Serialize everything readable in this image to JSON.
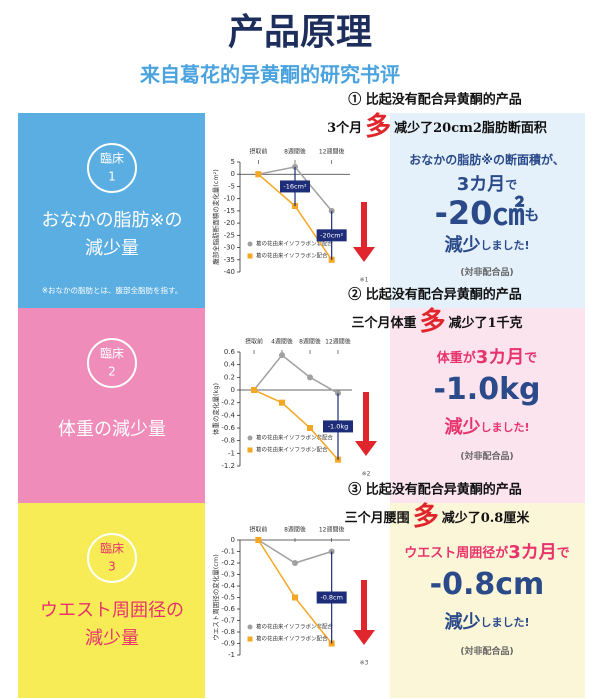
{
  "header": {
    "title": "产品原理",
    "subtitle": "来自葛花的异黄酮的研究书评"
  },
  "sections": [
    {
      "heading": "① 比起没有配合异黄酮的产品",
      "claim": [
        "3个月",
        "多",
        "减少了20cm2脂肪断面积"
      ],
      "badge": [
        "臨床",
        "1"
      ],
      "label": [
        "おなかの脂肪※の",
        "減少量"
      ],
      "note": "※おなかの脂肪とは、腹部全脂肪を指す。",
      "result": [
        [
          "おなかの脂肪※の断面積が、"
        ],
        [
          "3カ月",
          "で"
        ],
        [
          "-20㎠",
          "も"
        ],
        [
          "減少",
          "しました!"
        ],
        [
          "(対非配合品)"
        ]
      ]
    },
    {
      "heading": "② 比起没有配合异黄酮的产品",
      "claim": [
        "三个月体重",
        "多",
        "减少了1千克"
      ],
      "badge": [
        "臨床",
        "2"
      ],
      "label": [
        "体重の減少量"
      ],
      "result": [
        [
          "体重が",
          "3カ月",
          "で"
        ],
        [
          "-1.0kg"
        ],
        [
          "減少",
          "しました!"
        ],
        [
          "(対非配合品)"
        ]
      ]
    },
    {
      "heading": "③ 比起没有配合异黄酮的产品",
      "claim": [
        "三个月腰围",
        "多",
        "减少了0.8厘米"
      ],
      "badge": [
        "臨床",
        "3"
      ],
      "label": [
        "ウエスト周囲径の",
        "減少量"
      ],
      "result": [
        [
          "ウエスト周囲径が",
          "3カ月",
          "で"
        ],
        [
          "-0.8cm"
        ],
        [
          "減少",
          "しました!"
        ],
        [
          "(対非配合品)"
        ]
      ]
    }
  ],
  "chart_data": [
    {
      "type": "line",
      "categories": [
        "摂取前",
        "8週間後",
        "12週間後"
      ],
      "ylabel": "腹部全脂肪断面積の変化量(cm²)",
      "series": [
        {
          "name": "葛の花由来イソフラボン非配合",
          "color": "#a0a0a0",
          "values": [
            0,
            3,
            -15
          ]
        },
        {
          "name": "葛の花由来イソフラボン配合",
          "color": "#f5a623",
          "values": [
            0,
            -13,
            -35
          ]
        }
      ],
      "ylim": [
        -40,
        5
      ],
      "yticks": [
        5,
        0,
        -5,
        -10,
        -15,
        -20,
        -25,
        -30,
        -35,
        -40
      ],
      "annotations": [
        "-16cm²",
        "-20cm²"
      ],
      "footnote": "※1"
    },
    {
      "type": "line",
      "categories": [
        "摂取前",
        "4週間後",
        "8週間後",
        "12週間後"
      ],
      "ylabel": "体重の変化量(kg)",
      "series": [
        {
          "name": "葛の花由来イソフラボン非配合",
          "color": "#a0a0a0",
          "values": [
            0,
            0.55,
            0.2,
            -0.05
          ]
        },
        {
          "name": "葛の花由来イソフラボン配合",
          "color": "#f5a623",
          "values": [
            0,
            -0.2,
            -0.6,
            -1.1
          ]
        }
      ],
      "ylim": [
        -1.2,
        0.6
      ],
      "yticks": [
        0.6,
        0.4,
        0.2,
        0,
        -0.2,
        -0.4,
        -0.6,
        -0.8,
        -1,
        -1.2
      ],
      "annotations": [
        "-1.0kg"
      ],
      "footnote": "※2"
    },
    {
      "type": "line",
      "categories": [
        "摂取前",
        "8週間後",
        "12週間後"
      ],
      "ylabel": "ウエスト周囲径の変化量(cm)",
      "series": [
        {
          "name": "葛の花由来イソフラボン非配合",
          "color": "#a0a0a0",
          "values": [
            0,
            -0.2,
            -0.1
          ]
        },
        {
          "name": "葛の花由来イソフラボン配合",
          "color": "#f5a623",
          "values": [
            0,
            -0.5,
            -0.9
          ]
        }
      ],
      "ylim": [
        -1,
        0
      ],
      "yticks": [
        0,
        -0.1,
        -0.2,
        -0.3,
        -0.4,
        -0.5,
        -0.6,
        -0.7,
        -0.8,
        -0.9,
        -1
      ],
      "annotations": [
        "-0.8cm"
      ],
      "footnote": "※3"
    }
  ]
}
